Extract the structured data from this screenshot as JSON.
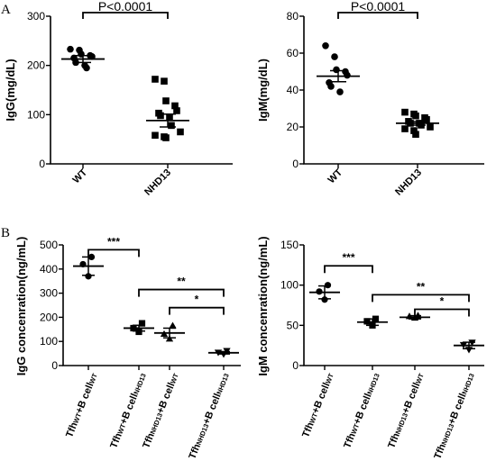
{
  "panel_labels": [
    "A",
    "B"
  ],
  "chart_data": [
    {
      "type": "scatter",
      "ylabel": "IgG(mg/dL)",
      "ylim": [
        0,
        300
      ],
      "yticks": [
        0,
        100,
        200,
        300
      ],
      "categories": [
        "WT",
        "NHD13"
      ],
      "markers": [
        "circle",
        "square"
      ],
      "points": [
        [
          233,
          231,
          223,
          220,
          218,
          215,
          206,
          200,
          195
        ],
        [
          172,
          168,
          128,
          118,
          108,
          103,
          98,
          95,
          78,
          65,
          58,
          55,
          53
        ]
      ],
      "mean": [
        213,
        88
      ],
      "sem": [
        7,
        13
      ],
      "comparisons": [
        {
          "from": 0,
          "to": 1,
          "label": "P<0.0001"
        }
      ]
    },
    {
      "type": "scatter",
      "ylabel": "IgM(mg/dL)",
      "ylim": [
        0,
        80
      ],
      "yticks": [
        0,
        20,
        40,
        60,
        80
      ],
      "categories": [
        "WT",
        "NHD13"
      ],
      "markers": [
        "circle",
        "square"
      ],
      "points": [
        [
          64,
          58,
          51,
          50,
          48,
          44,
          42,
          39
        ],
        [
          28,
          27,
          26,
          25,
          24,
          23,
          22,
          22,
          21,
          20,
          19,
          18,
          16
        ]
      ],
      "mean": [
        47.5,
        22
      ],
      "sem": [
        3,
        1
      ],
      "comparisons": [
        {
          "from": 0,
          "to": 1,
          "label": "P<0.0001"
        }
      ]
    },
    {
      "type": "scatter",
      "ylabel": "IgG concenration(ng/mL)",
      "ylim": [
        0,
        500
      ],
      "yticks": [
        0,
        100,
        200,
        300,
        400,
        500
      ],
      "categories": [
        {
          "a": "Tfh",
          "as": "WT",
          "b": "+B cell",
          "bs": "WT"
        },
        {
          "a": "Tfh",
          "as": "WT",
          "b": "+B cell",
          "bs": "NHD13"
        },
        {
          "a": "Tfh",
          "as": "NHD13",
          "b": "+B cell",
          "bs": "WT"
        },
        {
          "a": "Tfh",
          "as": "NHD13",
          "b": "+B cell",
          "bs": "NHD13"
        }
      ],
      "markers": [
        "circle",
        "square",
        "triangle",
        "invtriangle"
      ],
      "points": [
        [
          450,
          420,
          370
        ],
        [
          175,
          155,
          140
        ],
        [
          165,
          130,
          110
        ],
        [
          62,
          55,
          48
        ]
      ],
      "mean": [
        412,
        155,
        135,
        53
      ],
      "sem": [
        38,
        12,
        20,
        5
      ],
      "comparisons": [
        {
          "from": 0,
          "to": 1,
          "label": "***",
          "y": 480
        },
        {
          "from": 1,
          "to": 3,
          "label": "**",
          "y": 315
        },
        {
          "from": 2,
          "to": 3,
          "label": "*",
          "y": 240
        }
      ]
    },
    {
      "type": "scatter",
      "ylabel": "IgM concenration(ng/mL)",
      "ylim": [
        0,
        150
      ],
      "yticks": [
        0,
        50,
        100,
        150
      ],
      "categories": [
        {
          "a": "Tfh",
          "as": "WT",
          "b": "+B cell",
          "bs": "WT"
        },
        {
          "a": "Tfh",
          "as": "WT",
          "b": "+B cell",
          "bs": "NHD13"
        },
        {
          "a": "Tfh",
          "as": "NHD13",
          "b": "+B cell",
          "bs": "WT"
        },
        {
          "a": "Tfh",
          "as": "NHD13",
          "b": "+B cell",
          "bs": "NHD13"
        }
      ],
      "markers": [
        "circle",
        "square",
        "triangle",
        "invtriangle"
      ],
      "points": [
        [
          100,
          92,
          82
        ],
        [
          58,
          55,
          50
        ],
        [
          62,
          61,
          59
        ],
        [
          29,
          26,
          20
        ]
      ],
      "mean": [
        91,
        54,
        60,
        25
      ],
      "sem": [
        8,
        4,
        2,
        4
      ],
      "comparisons": [
        {
          "from": 0,
          "to": 1,
          "label": "***",
          "y": 124
        },
        {
          "from": 1,
          "to": 3,
          "label": "**",
          "y": 88
        },
        {
          "from": 2,
          "to": 3,
          "label": "*",
          "y": 70
        }
      ]
    }
  ]
}
